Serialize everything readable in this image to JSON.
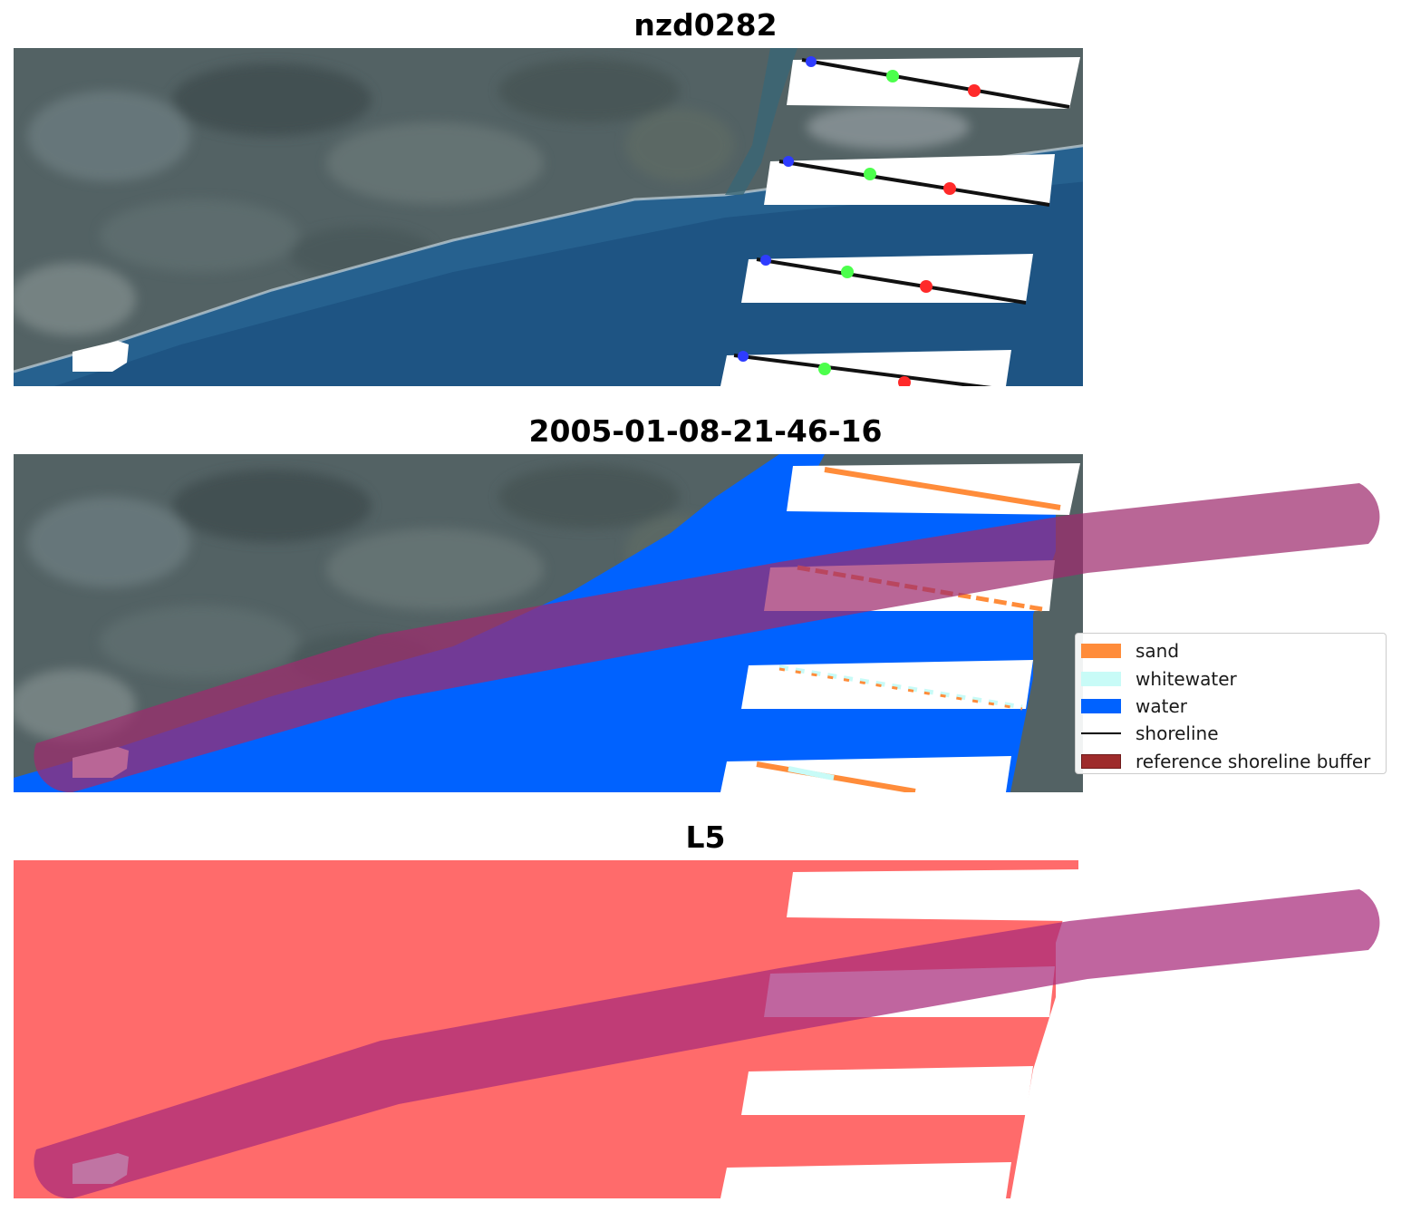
{
  "panels": [
    {
      "title": "nzd0282"
    },
    {
      "title": "2005-01-08-21-46-16"
    },
    {
      "title": "L5"
    }
  ],
  "legend": {
    "items": [
      {
        "label": "sand",
        "color": "#ff8c3a",
        "kind": "patch"
      },
      {
        "label": "whitewater",
        "color": "#c8fbf7",
        "kind": "patch"
      },
      {
        "label": "water",
        "color": "#0062ff",
        "kind": "patch"
      },
      {
        "label": "shoreline",
        "color": "#000000",
        "kind": "line"
      },
      {
        "label": "reference shoreline buffer",
        "color": "#9e2b2b",
        "kind": "patch"
      }
    ]
  },
  "colors": {
    "land": "#4d5a5c",
    "sea": "#1f5a8a",
    "mask": "#ffffff",
    "buffer": "#b0357a",
    "cloud_panel": "#ff6b6b"
  }
}
